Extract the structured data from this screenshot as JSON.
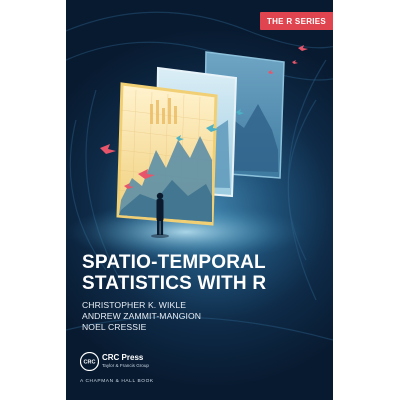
{
  "series_badge": "THE R SERIES",
  "title_lines": [
    "SPATIO-TEMPORAL",
    "STATISTICS WITH R"
  ],
  "authors": [
    "CHRISTOPHER K. WIKLE",
    "ANDREW ZAMMIT-MANGION",
    "NOEL CRESSIE"
  ],
  "publisher": {
    "logo_text": "CRC",
    "name": "CRC Press",
    "subtitle": "Taylor & Francis Group",
    "imprint": "A CHAPMAN & HALL BOOK"
  },
  "colors": {
    "background_dark": "#0e2a47",
    "badge": "#e0444f",
    "birds": "#e8556a",
    "panel_frame": "#f1cf74"
  }
}
